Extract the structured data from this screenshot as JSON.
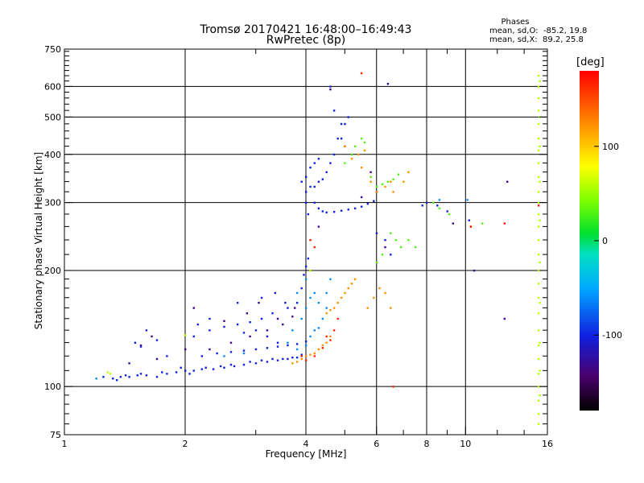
{
  "header": {
    "title_line1": "Tromsø 20170421 16:48:00–16:49:43",
    "title_line2": "RwPretec (8p)"
  },
  "phases": {
    "title": "Phases",
    "o_mode": "mean, sd,O:  -85.2, 19.8",
    "x_mode": "mean, sd,X:  89.2, 25.8"
  },
  "colorbar": {
    "unit": "[deg]",
    "ticks": [
      {
        "value": 100,
        "label": "100"
      },
      {
        "value": 0,
        "label": "0"
      },
      {
        "value": -100,
        "label": "-100"
      }
    ],
    "range": [
      -180,
      180
    ]
  },
  "chart_data": {
    "type": "scatter",
    "title": "Tromsø 20170421 16:48:00–16:49:43",
    "subtitle": "RwPretec (8p)",
    "xlabel": "Frequency [MHz]",
    "ylabel": "Stationary phase Virtual Height [km]",
    "x_scale": "log",
    "y_scale": "log",
    "xlim": [
      1,
      16
    ],
    "ylim": [
      75,
      750
    ],
    "x_ticks": [
      1,
      2,
      4,
      6,
      8,
      10,
      16
    ],
    "x_tick_labels": [
      "1",
      "2",
      "4",
      "6",
      "8",
      "10",
      "16"
    ],
    "y_ticks": [
      75,
      100,
      200,
      300,
      400,
      500,
      600,
      750
    ],
    "y_tick_labels": [
      "75",
      "100",
      "200",
      "300",
      "400",
      "500",
      "600",
      "750"
    ],
    "x_gridlines": [
      2,
      4,
      6,
      8,
      10
    ],
    "y_gridlines": [
      100,
      200,
      300,
      400,
      500,
      600
    ],
    "grid": true,
    "color_scale": "phase [deg], -180 black/purple to +180 red",
    "series": [
      {
        "color_phase": -100,
        "points": [
          [
            1.25,
            106
          ],
          [
            1.32,
            105
          ],
          [
            1.38,
            106
          ],
          [
            1.45,
            106
          ],
          [
            1.52,
            107
          ],
          [
            1.6,
            107
          ],
          [
            1.7,
            106
          ],
          [
            1.8,
            108
          ],
          [
            1.9,
            109
          ],
          [
            2.0,
            110
          ],
          [
            2.1,
            110
          ],
          [
            2.2,
            111
          ],
          [
            2.35,
            111
          ],
          [
            2.5,
            112
          ],
          [
            2.65,
            113
          ],
          [
            2.8,
            114
          ],
          [
            3.0,
            115
          ],
          [
            3.2,
            116
          ],
          [
            3.4,
            117
          ],
          [
            3.6,
            118
          ],
          [
            3.8,
            119
          ],
          [
            1.35,
            104
          ],
          [
            1.42,
            107
          ],
          [
            1.55,
            108
          ],
          [
            1.75,
            109
          ],
          [
            1.95,
            112
          ],
          [
            2.05,
            108
          ],
          [
            2.25,
            112
          ],
          [
            2.45,
            113
          ],
          [
            2.6,
            114
          ],
          [
            2.9,
            116
          ],
          [
            3.1,
            117
          ],
          [
            3.3,
            118
          ],
          [
            3.5,
            118
          ],
          [
            3.7,
            119
          ],
          [
            3.9,
            121
          ],
          [
            2.2,
            120
          ],
          [
            2.4,
            122
          ],
          [
            2.6,
            123
          ],
          [
            2.8,
            124
          ],
          [
            3.0,
            125
          ],
          [
            3.2,
            126
          ],
          [
            3.4,
            127
          ],
          [
            3.6,
            128
          ],
          [
            3.8,
            129
          ],
          [
            4.0,
            131
          ],
          [
            2.1,
            135
          ],
          [
            2.3,
            140
          ],
          [
            2.5,
            143
          ],
          [
            2.7,
            145
          ],
          [
            2.9,
            147
          ],
          [
            3.1,
            150
          ],
          [
            3.3,
            155
          ],
          [
            3.6,
            160
          ],
          [
            3.8,
            165
          ],
          [
            3.9,
            180
          ],
          [
            3.95,
            195
          ],
          [
            4.0,
            205
          ],
          [
            4.05,
            215
          ],
          [
            4.0,
            320
          ],
          [
            4.1,
            330
          ],
          [
            4.2,
            330
          ],
          [
            4.3,
            340
          ],
          [
            4.4,
            345
          ],
          [
            4.5,
            360
          ],
          [
            4.6,
            380
          ],
          [
            4.7,
            400
          ],
          [
            4.8,
            440
          ],
          [
            4.9,
            480
          ],
          [
            4.7,
            520
          ],
          [
            4.6,
            600
          ],
          [
            4.2,
            300
          ],
          [
            4.3,
            290
          ],
          [
            4.4,
            285
          ],
          [
            4.5,
            283
          ],
          [
            4.7,
            284
          ],
          [
            4.9,
            286
          ],
          [
            5.1,
            288
          ],
          [
            5.3,
            290
          ],
          [
            5.5,
            293
          ],
          [
            5.7,
            298
          ],
          [
            5.9,
            303
          ],
          [
            4.0,
            350
          ],
          [
            4.1,
            370
          ],
          [
            4.2,
            380
          ],
          [
            4.3,
            390
          ],
          [
            3.9,
            340
          ],
          [
            4.0,
            300
          ],
          [
            4.05,
            280
          ],
          [
            5.0,
            480
          ],
          [
            5.1,
            500
          ],
          [
            4.9,
            440
          ],
          [
            5.0,
            420
          ],
          [
            3.0,
            140
          ],
          [
            3.2,
            135
          ],
          [
            3.4,
            130
          ],
          [
            2.8,
            138
          ],
          [
            1.5,
            130
          ],
          [
            1.55,
            127
          ],
          [
            1.7,
            132
          ],
          [
            1.8,
            120
          ],
          [
            2.15,
            145
          ],
          [
            2.3,
            150
          ],
          [
            2.7,
            165
          ],
          [
            3.1,
            170
          ],
          [
            3.35,
            175
          ],
          [
            3.55,
            165
          ],
          [
            1.6,
            140
          ],
          [
            6.0,
            250
          ],
          [
            6.3,
            240
          ],
          [
            6.5,
            220
          ],
          [
            7.8,
            295
          ],
          [
            8.0,
            300
          ],
          [
            8.5,
            295
          ],
          [
            9.0,
            285
          ],
          [
            10.2,
            270
          ]
        ]
      },
      {
        "color_phase": -130,
        "points": [
          [
            1.45,
            115
          ],
          [
            1.7,
            118
          ],
          [
            2.0,
            125
          ],
          [
            2.3,
            125
          ],
          [
            2.6,
            130
          ],
          [
            2.9,
            135
          ],
          [
            3.2,
            140
          ],
          [
            3.5,
            145
          ],
          [
            1.55,
            128
          ],
          [
            1.65,
            135
          ],
          [
            2.1,
            160
          ],
          [
            2.5,
            148
          ],
          [
            2.85,
            155
          ],
          [
            3.05,
            165
          ],
          [
            3.4,
            150
          ],
          [
            3.75,
            160
          ],
          [
            4.6,
            590
          ],
          [
            6.4,
            610
          ],
          [
            6.3,
            230
          ],
          [
            9.3,
            265
          ],
          [
            10.5,
            200
          ],
          [
            12.5,
            150
          ],
          [
            12.7,
            340
          ],
          [
            6.0,
            320
          ],
          [
            5.5,
            310
          ],
          [
            5.8,
            360
          ],
          [
            3.7,
            152
          ],
          [
            4.3,
            260
          ]
        ]
      },
      {
        "color_phase": -60,
        "points": [
          [
            3.6,
            130
          ],
          [
            3.8,
            125
          ],
          [
            4.0,
            128
          ],
          [
            4.1,
            135
          ],
          [
            4.2,
            140
          ],
          [
            4.3,
            142
          ],
          [
            4.4,
            150
          ],
          [
            4.5,
            160
          ],
          [
            3.7,
            140
          ],
          [
            3.9,
            150
          ],
          [
            4.0,
            160
          ],
          [
            4.1,
            170
          ],
          [
            4.2,
            175
          ],
          [
            3.8,
            175
          ],
          [
            4.0,
            190
          ],
          [
            4.3,
            165
          ],
          [
            4.5,
            175
          ],
          [
            2.5,
            120
          ],
          [
            2.8,
            122
          ],
          [
            1.2,
            105
          ],
          [
            4.6,
            190
          ],
          [
            10.1,
            305
          ],
          [
            8.6,
            305
          ]
        ]
      },
      {
        "color_phase": 30,
        "points": [
          [
            5.0,
            380
          ],
          [
            5.2,
            400
          ],
          [
            5.3,
            420
          ],
          [
            5.5,
            440
          ],
          [
            5.6,
            430
          ],
          [
            5.8,
            350
          ],
          [
            6.0,
            330
          ],
          [
            6.2,
            335
          ],
          [
            6.4,
            340
          ],
          [
            6.6,
            345
          ],
          [
            6.8,
            355
          ],
          [
            6.5,
            250
          ],
          [
            6.7,
            240
          ],
          [
            6.9,
            230
          ],
          [
            7.2,
            240
          ],
          [
            7.5,
            230
          ],
          [
            8.3,
            300
          ],
          [
            8.6,
            290
          ],
          [
            9.1,
            280
          ],
          [
            10.3,
            260
          ],
          [
            11.0,
            265
          ],
          [
            6.0,
            210
          ],
          [
            6.2,
            220
          ]
        ]
      },
      {
        "color_phase": 120,
        "points": [
          [
            3.7,
            115
          ],
          [
            3.8,
            116
          ],
          [
            3.9,
            118
          ],
          [
            4.0,
            120
          ],
          [
            4.1,
            121
          ],
          [
            4.2,
            122
          ],
          [
            4.3,
            125
          ],
          [
            4.4,
            128
          ],
          [
            4.5,
            130
          ],
          [
            4.6,
            135
          ],
          [
            4.5,
            155
          ],
          [
            4.6,
            158
          ],
          [
            4.7,
            160
          ],
          [
            4.8,
            165
          ],
          [
            4.9,
            170
          ],
          [
            5.0,
            175
          ],
          [
            5.1,
            180
          ],
          [
            5.2,
            185
          ],
          [
            5.3,
            190
          ],
          [
            5.0,
            420
          ],
          [
            5.2,
            390
          ],
          [
            5.4,
            400
          ],
          [
            5.5,
            370
          ],
          [
            5.6,
            410
          ],
          [
            5.8,
            340
          ],
          [
            6.0,
            320
          ],
          [
            6.3,
            330
          ],
          [
            6.5,
            340
          ],
          [
            6.6,
            320
          ],
          [
            7.0,
            340
          ],
          [
            7.2,
            360
          ],
          [
            5.7,
            160
          ],
          [
            5.9,
            170
          ],
          [
            6.1,
            180
          ],
          [
            6.3,
            175
          ],
          [
            6.5,
            160
          ]
        ]
      },
      {
        "color_phase": 165,
        "points": [
          [
            3.9,
            120
          ],
          [
            4.0,
            117
          ],
          [
            4.2,
            120
          ],
          [
            4.4,
            126
          ],
          [
            4.6,
            132
          ],
          [
            4.7,
            140
          ],
          [
            4.8,
            150
          ],
          [
            5.5,
            650
          ],
          [
            6.6,
            100
          ],
          [
            4.1,
            240
          ],
          [
            4.2,
            230
          ],
          [
            4.5,
            135
          ]
        ]
      },
      {
        "color_phase": 60,
        "points": [
          [
            15.2,
            640
          ],
          [
            15.2,
            600
          ],
          [
            15.2,
            560
          ],
          [
            15.2,
            520
          ],
          [
            15.2,
            480
          ],
          [
            15.2,
            440
          ],
          [
            15.2,
            410
          ],
          [
            15.2,
            380
          ],
          [
            15.2,
            350
          ],
          [
            15.2,
            320
          ],
          [
            15.2,
            300
          ],
          [
            15.2,
            280
          ],
          [
            15.2,
            260
          ],
          [
            15.2,
            240
          ],
          [
            15.2,
            220
          ],
          [
            15.2,
            200
          ],
          [
            15.2,
            185
          ],
          [
            15.2,
            170
          ],
          [
            15.2,
            155
          ],
          [
            15.2,
            140
          ],
          [
            15.2,
            128
          ],
          [
            15.2,
            118
          ],
          [
            15.2,
            108
          ],
          [
            15.2,
            100
          ],
          [
            15.2,
            92
          ],
          [
            15.2,
            85
          ],
          [
            15.2,
            80
          ],
          [
            15.3,
            620
          ],
          [
            15.3,
            500
          ],
          [
            15.3,
            420
          ],
          [
            15.3,
            340
          ],
          [
            15.3,
            270
          ],
          [
            15.3,
            210
          ],
          [
            15.3,
            165
          ],
          [
            15.3,
            130
          ],
          [
            15.3,
            110
          ],
          [
            15.3,
            95
          ],
          [
            1.3,
            108
          ],
          [
            1.28,
            109
          ],
          [
            2.0,
            136
          ],
          [
            4.1,
            200
          ]
        ]
      },
      {
        "color_phase": 175,
        "points": [
          [
            15.2,
            295
          ],
          [
            12.5,
            265
          ],
          [
            10.3,
            260
          ]
        ]
      }
    ]
  }
}
